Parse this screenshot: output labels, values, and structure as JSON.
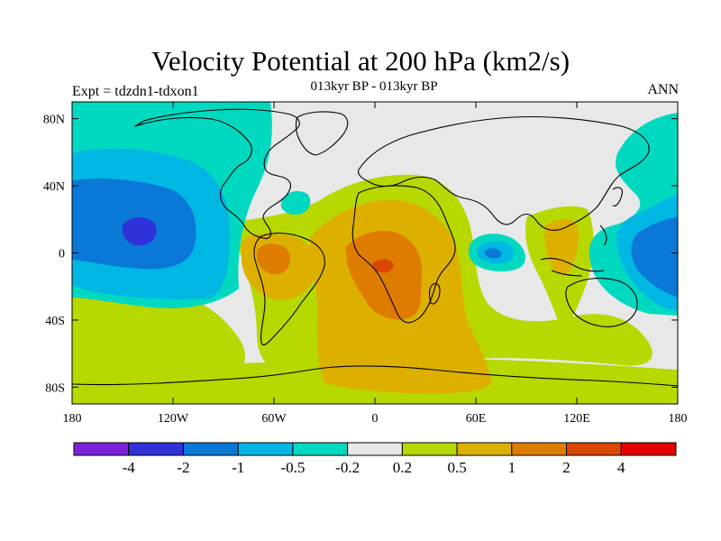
{
  "title": "Velocity Potential at 200 hPa (km2/s)",
  "subtitle": "013kyr BP - 013kyr BP",
  "left_string": "Expt = tdzdn1-tdxon1",
  "right_string": "ANN",
  "colors": {
    "background": "#e8e8e8",
    "coast": "#000000"
  },
  "chart_data": {
    "type": "heatmap",
    "title": "Velocity Potential at 200 hPa (km2/s)",
    "projection": "cylindrical-equidistant",
    "lon_range": [
      -180,
      180
    ],
    "lat_range": [
      -90,
      90
    ],
    "x_ticks": [
      {
        "value": -180,
        "label": "180"
      },
      {
        "value": -120,
        "label": "120W"
      },
      {
        "value": -60,
        "label": "60W"
      },
      {
        "value": 0,
        "label": "0"
      },
      {
        "value": 60,
        "label": "60E"
      },
      {
        "value": 120,
        "label": "120E"
      },
      {
        "value": 180,
        "label": "180"
      }
    ],
    "y_ticks": [
      {
        "value": 80,
        "label": "80N"
      },
      {
        "value": 40,
        "label": "40N"
      },
      {
        "value": 0,
        "label": "0"
      },
      {
        "value": -40,
        "label": "40S"
      },
      {
        "value": -80,
        "label": "80S"
      }
    ],
    "colorbar": {
      "colors": [
        "#7b22d8",
        "#2f31d9",
        "#0a78d6",
        "#00b7e4",
        "#00d9c0",
        "#e8e8e8",
        "#b7d800",
        "#ddb000",
        "#de7c00",
        "#da4800",
        "#e60000"
      ],
      "labels": [
        "-4",
        "-2",
        "-1",
        "-0.5",
        "-0.2",
        "0.2",
        "0.5",
        "1",
        "2",
        "4"
      ]
    }
  }
}
